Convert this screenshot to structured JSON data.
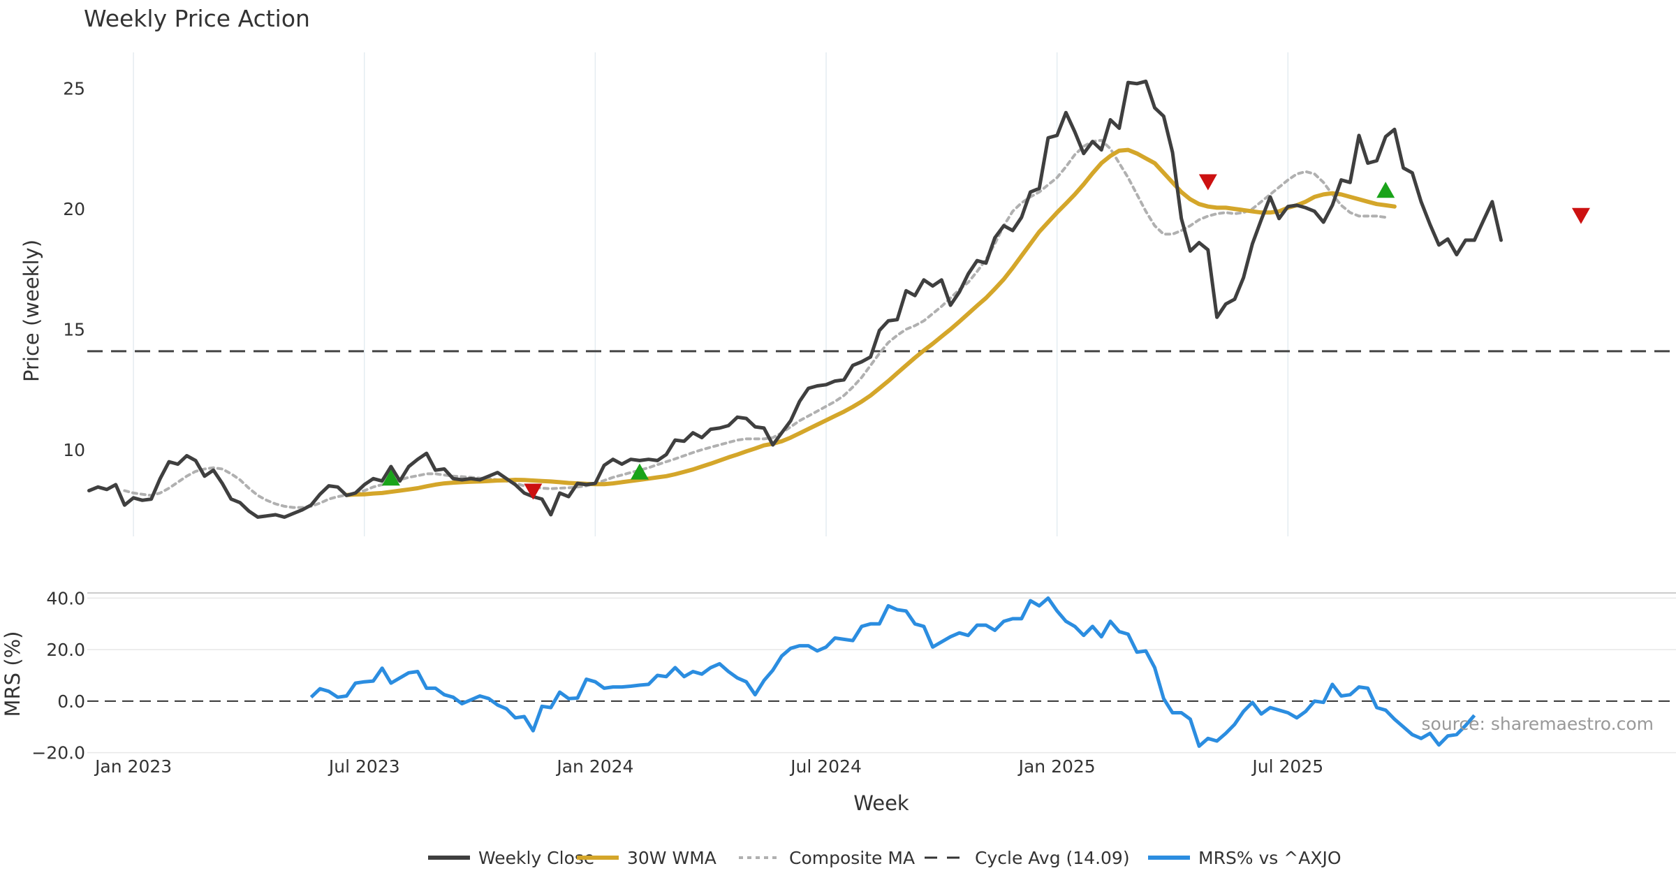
{
  "chart_data": [
    {
      "type": "line",
      "title": "Weekly Price Action",
      "ylabel": "Price (weekly)",
      "ylim": [
        6.4,
        26.5
      ],
      "yticks": [
        "10",
        "15",
        "20",
        "25"
      ],
      "grid": "vertical",
      "x_start": "2022-11-28",
      "x_step_days": 7,
      "series": [
        {
          "name": "Weekly Close",
          "color": "#3f3f3f",
          "values": [
            8.3,
            8.45,
            8.35,
            8.55,
            7.7,
            8.0,
            7.9,
            7.95,
            8.8,
            9.5,
            9.4,
            9.75,
            9.55,
            8.9,
            9.15,
            8.6,
            7.95,
            7.8,
            7.45,
            7.2,
            7.25,
            7.3,
            7.2,
            7.35,
            7.5,
            7.7,
            8.15,
            8.5,
            8.45,
            8.1,
            8.2,
            8.55,
            8.8,
            8.7,
            9.3,
            8.7,
            9.3,
            9.6,
            9.85,
            9.15,
            9.2,
            8.8,
            8.75,
            8.8,
            8.75,
            8.9,
            9.05,
            8.8,
            8.55,
            8.2,
            8.05,
            7.95,
            7.3,
            8.2,
            8.05,
            8.6,
            8.55,
            8.6,
            9.35,
            9.6,
            9.4,
            9.6,
            9.55,
            9.6,
            9.55,
            9.8,
            10.4,
            10.35,
            10.7,
            10.5,
            10.85,
            10.9,
            11.0,
            11.35,
            11.3,
            10.95,
            10.9,
            10.2,
            10.7,
            11.2,
            12.0,
            12.55,
            12.65,
            12.7,
            12.85,
            12.9,
            13.5,
            13.65,
            13.85,
            14.95,
            15.35,
            15.4,
            16.6,
            16.4,
            17.05,
            16.8,
            17.05,
            16.0,
            16.55,
            17.3,
            17.85,
            17.75,
            18.8,
            19.3,
            19.1,
            19.65,
            20.7,
            20.85,
            22.95,
            23.05,
            24.0,
            23.2,
            22.3,
            22.8,
            22.45,
            23.7,
            23.35,
            25.25,
            25.2,
            25.3,
            24.2,
            23.85,
            22.35,
            19.6,
            18.25,
            18.6,
            18.3,
            15.5,
            16.05,
            16.25,
            17.15,
            18.55,
            19.55,
            20.5,
            19.6,
            20.1,
            20.15,
            20.05,
            19.9,
            19.45,
            20.15,
            21.2,
            21.1,
            23.05,
            21.9,
            22.0,
            23.0,
            23.3,
            21.7,
            21.5,
            20.3,
            19.35,
            18.5,
            18.75,
            18.1,
            18.7,
            18.7,
            19.5,
            20.3,
            18.7
          ]
        },
        {
          "name": "30W WMA",
          "color": "#d4a62a",
          "start_index": 29,
          "values": [
            8.12,
            8.14,
            8.15,
            8.18,
            8.2,
            8.25,
            8.3,
            8.35,
            8.4,
            8.48,
            8.55,
            8.6,
            8.63,
            8.65,
            8.67,
            8.68,
            8.7,
            8.72,
            8.73,
            8.75,
            8.74,
            8.72,
            8.7,
            8.68,
            8.65,
            8.62,
            8.6,
            8.58,
            8.57,
            8.57,
            8.6,
            8.65,
            8.7,
            8.75,
            8.8,
            8.85,
            8.9,
            8.98,
            9.08,
            9.18,
            9.3,
            9.42,
            9.55,
            9.68,
            9.8,
            9.93,
            10.05,
            10.18,
            10.25,
            10.35,
            10.5,
            10.68,
            10.86,
            11.04,
            11.22,
            11.4,
            11.58,
            11.78,
            12.0,
            12.25,
            12.55,
            12.85,
            13.18,
            13.5,
            13.82,
            14.12,
            14.4,
            14.7,
            15.0,
            15.32,
            15.65,
            15.98,
            16.3,
            16.68,
            17.08,
            17.55,
            18.05,
            18.55,
            19.05,
            19.45,
            19.85,
            20.22,
            20.6,
            21.02,
            21.48,
            21.9,
            22.2,
            22.42,
            22.45,
            22.3,
            22.1,
            21.9,
            21.5,
            21.1,
            20.7,
            20.4,
            20.2,
            20.1,
            20.05,
            20.05,
            20.0,
            19.95,
            19.9,
            19.85,
            19.85,
            19.9,
            20.05,
            20.15,
            20.3,
            20.5,
            20.6,
            20.65,
            20.6,
            20.5,
            20.4,
            20.3,
            20.2,
            20.15,
            20.1
          ]
        },
        {
          "name": "Composite MA",
          "color": "#b0b0b0",
          "start_index": 4,
          "values": [
            8.3,
            8.2,
            8.15,
            8.1,
            8.2,
            8.4,
            8.65,
            8.9,
            9.1,
            9.2,
            9.25,
            9.2,
            9.0,
            8.75,
            8.4,
            8.1,
            7.9,
            7.75,
            7.65,
            7.6,
            7.6,
            7.65,
            7.78,
            7.95,
            8.05,
            8.12,
            8.2,
            8.3,
            8.45,
            8.55,
            8.65,
            8.75,
            8.85,
            8.92,
            9.0,
            9.0,
            8.95,
            8.9,
            8.88,
            8.85,
            8.82,
            8.8,
            8.75,
            8.7,
            8.6,
            8.5,
            8.45,
            8.4,
            8.38,
            8.4,
            8.42,
            8.45,
            8.5,
            8.6,
            8.72,
            8.85,
            8.95,
            9.05,
            9.15,
            9.25,
            9.38,
            9.5,
            9.62,
            9.75,
            9.88,
            10.0,
            10.1,
            10.2,
            10.3,
            10.4,
            10.45,
            10.45,
            10.45,
            10.5,
            10.7,
            10.95,
            11.2,
            11.4,
            11.6,
            11.8,
            12.0,
            12.25,
            12.6,
            13.0,
            13.5,
            14.0,
            14.45,
            14.75,
            15.0,
            15.15,
            15.35,
            15.65,
            15.95,
            16.3,
            16.65,
            16.95,
            17.4,
            17.9,
            18.55,
            19.3,
            19.9,
            20.25,
            20.5,
            20.7,
            21.0,
            21.3,
            21.75,
            22.25,
            22.6,
            22.8,
            22.85,
            22.5,
            21.9,
            21.3,
            20.6,
            19.9,
            19.3,
            18.95,
            18.95,
            19.1,
            19.3,
            19.55,
            19.7,
            19.8,
            19.85,
            19.8,
            19.85,
            20.0,
            20.3,
            20.6,
            20.9,
            21.2,
            21.45,
            21.55,
            21.45,
            21.1,
            20.6,
            20.15,
            19.85,
            19.7,
            19.7,
            19.7,
            19.65
          ]
        }
      ],
      "annotations": {
        "cycle_avg": 14.09,
        "buy_signals": [
          {
            "index": 34,
            "value": 8.8
          },
          {
            "index": 62,
            "value": 9.05
          },
          {
            "index": 146,
            "value": 20.75
          }
        ],
        "sell_signals": [
          {
            "index": 50,
            "value": 8.3
          },
          {
            "index": 126,
            "value": 21.15
          },
          {
            "index": 168,
            "value": 19.75
          }
        ]
      }
    },
    {
      "type": "line",
      "ylabel": "MRS (%)",
      "xlabel": "Week",
      "ylim": [
        -22,
        42
      ],
      "yticks": [
        "−20.0",
        "0.0",
        "20.0",
        "40.0"
      ],
      "xticks": [
        "Jan 2023",
        "Jul 2023",
        "Jan 2024",
        "Jul 2024",
        "Jan 2025",
        "Jul 2025"
      ],
      "xtick_index": [
        5,
        31,
        57,
        83,
        109,
        135
      ],
      "grid": "horizontal",
      "zero_line": 0,
      "series": [
        {
          "name": "MRS% vs ^AXJO",
          "color": "#2b8de0",
          "start_index": 25,
          "values": [
            1.5,
            4.8,
            3.8,
            1.5,
            2.0,
            7.0,
            7.5,
            7.8,
            12.8,
            7.0,
            9.0,
            11.0,
            11.5,
            5.0,
            5.0,
            2.5,
            1.5,
            -1.0,
            0.5,
            2.0,
            1.0,
            -1.5,
            -3.0,
            -6.5,
            -6.0,
            -11.5,
            -2.0,
            -2.5,
            3.5,
            1.0,
            1.2,
            8.5,
            7.5,
            5.0,
            5.5,
            5.5,
            5.8,
            6.2,
            6.5,
            10.0,
            9.5,
            13.0,
            9.5,
            11.5,
            10.5,
            13.0,
            14.5,
            11.5,
            9.0,
            7.5,
            2.5,
            8.0,
            12.0,
            17.5,
            20.5,
            21.5,
            21.5,
            19.5,
            21.0,
            24.5,
            24.0,
            23.5,
            29.0,
            30.0,
            30.0,
            37.0,
            35.5,
            35.0,
            30.0,
            29.0,
            21.0,
            23.0,
            25.0,
            26.5,
            25.5,
            29.5,
            29.5,
            27.5,
            31.0,
            32.0,
            32.0,
            39.0,
            37.0,
            40.0,
            35.0,
            31.0,
            29.0,
            25.5,
            29.0,
            25.0,
            31.0,
            27.0,
            26.0,
            19.0,
            19.5,
            13.0,
            1.0,
            -4.5,
            -4.5,
            -7.0,
            -17.5,
            -14.5,
            -15.5,
            -12.5,
            -9.0,
            -4.0,
            -0.5,
            -5.0,
            -2.5,
            -3.5,
            -4.5,
            -6.5,
            -4.0,
            0.0,
            -0.5,
            6.5,
            2.0,
            2.5,
            5.5,
            5.0,
            -2.5,
            -3.5,
            -7.0,
            -10.0,
            -13.0,
            -14.5,
            -12.5,
            -17.0,
            -13.5,
            -13.0,
            -9.5,
            -5.5
          ]
        }
      ],
      "annotations": {
        "source": "source: sharemaestro.com"
      }
    }
  ],
  "legend": {
    "position": "bottom",
    "items": [
      {
        "label": "Weekly Close",
        "color": "#3f3f3f",
        "style": "solid"
      },
      {
        "label": "30W WMA",
        "color": "#d4a62a",
        "style": "solid"
      },
      {
        "label": "Composite MA",
        "color": "#b0b0b0",
        "style": "dotted"
      },
      {
        "label": "Cycle Avg (14.09)",
        "color": "#333333",
        "style": "dashed"
      },
      {
        "label": "MRS% vs ^AXJO",
        "color": "#2b8de0",
        "style": "solid"
      }
    ]
  }
}
